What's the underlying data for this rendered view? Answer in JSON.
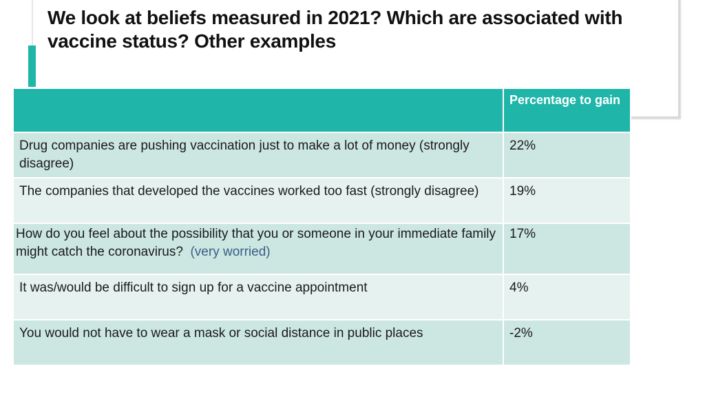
{
  "slide": {
    "title": "We look at beliefs measured in 2021? Which are associated with vaccine status? Other examples"
  },
  "table": {
    "header": {
      "col1": "",
      "col2": "Percentage to gain"
    },
    "rows": [
      {
        "label": "Drug companies are pushing vaccination just to make a lot of money (strongly disagree)",
        "highlight": "",
        "value": "22%"
      },
      {
        "label": "The companies that developed the vaccines worked too fast  (strongly disagree)",
        "highlight": "",
        "value": "19%"
      },
      {
        "label": "How do you feel about the possibility that you or someone in your immediate family might catch the coronavirus?",
        "highlight": "(very worried)",
        "value": "17%"
      },
      {
        "label": "It was/would be difficult to sign up for a vaccine appointment",
        "highlight": "",
        "value": "4%"
      },
      {
        "label": "You would not have to wear a mask or social distance in public places",
        "highlight": "",
        "value": "-2%"
      }
    ],
    "colors": {
      "header": "#1fb5a8",
      "row_dark": "#cce6e2",
      "row_light": "#e6f2f0",
      "highlight_text": "#3a5f86"
    }
  }
}
